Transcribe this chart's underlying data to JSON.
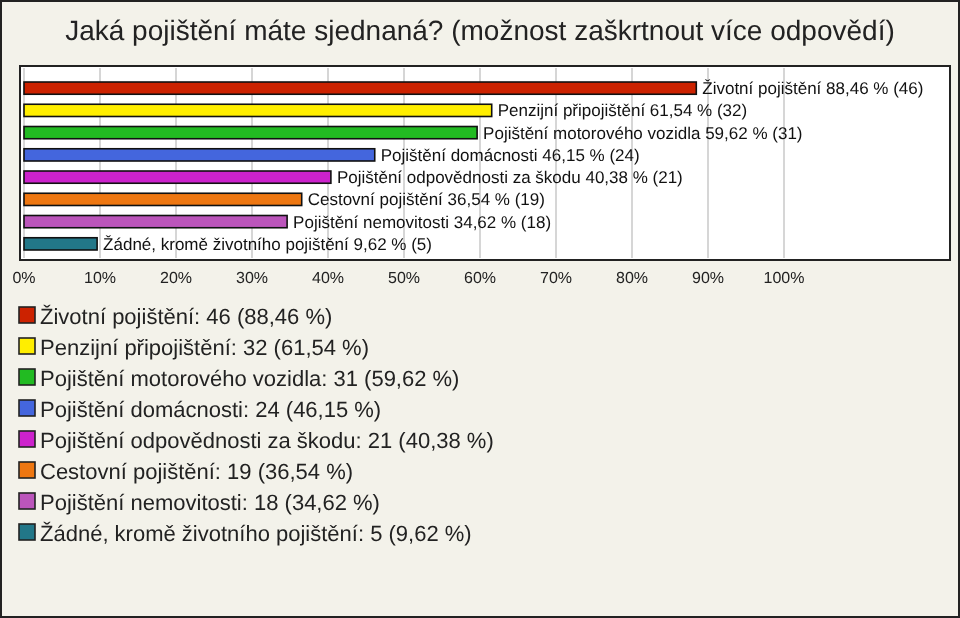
{
  "chart_data": {
    "type": "bar",
    "orientation": "horizontal",
    "title": "Jaká pojištění máte sjednaná? (možnost zaškrtnout více odpovědí)",
    "categories": [
      "Životní pojištění",
      "Penzijní připojištění",
      "Pojištění motorového vozidla",
      "Pojištění domácnosti",
      "Pojištění odpovědnosti za škodu",
      "Cestovní pojištění",
      "Pojištění nemovitosti",
      "Žádné, kromě životního pojištění"
    ],
    "values": [
      88.46,
      61.54,
      59.62,
      46.15,
      40.38,
      36.54,
      34.62,
      9.62
    ],
    "value_labels": [
      "88,46 % (46)",
      "61,54 % (32)",
      "59,62 % (31)",
      "46,15 % (24)",
      "40,38 % (21)",
      "36,54 % (19)",
      "34,62 % (18)",
      "9,62 % (5)"
    ],
    "colors": [
      "#cc2200",
      "#ffee00",
      "#22bb22",
      "#4466dd",
      "#cc22cc",
      "#ee7711",
      "#bb55bb",
      "#227788"
    ],
    "xlim": [
      0,
      122
    ],
    "xticks": [
      {
        "value": 0,
        "label": "0%"
      },
      {
        "value": 10,
        "label": "10%"
      },
      {
        "value": 20,
        "label": "20%"
      },
      {
        "value": 30,
        "label": "30%"
      },
      {
        "value": 40,
        "label": "40%"
      },
      {
        "value": 50,
        "label": "50%"
      },
      {
        "value": 60,
        "label": "60%"
      },
      {
        "value": 70,
        "label": "70%"
      },
      {
        "value": 80,
        "label": "80%"
      },
      {
        "value": 90,
        "label": "90%"
      },
      {
        "value": 100,
        "label": "100%"
      }
    ],
    "grid": "x",
    "annotations": [
      "Životní pojištění: 46 (88,46 %)",
      "Penzijní připojištění: 32 (61,54 %)",
      "Pojištění motorového vozidla: 31 (59,62 %)",
      "Pojištění domácnosti: 24 (46,15 %)",
      "Pojištění odpovědnosti za škodu: 21 (40,38 %)",
      "Cestovní pojištění: 19 (36,54 %)",
      "Pojištění nemovitosti: 18 (34,62 %)",
      "Žádné, kromě životního pojištění: 5 (9,62 %)"
    ]
  }
}
